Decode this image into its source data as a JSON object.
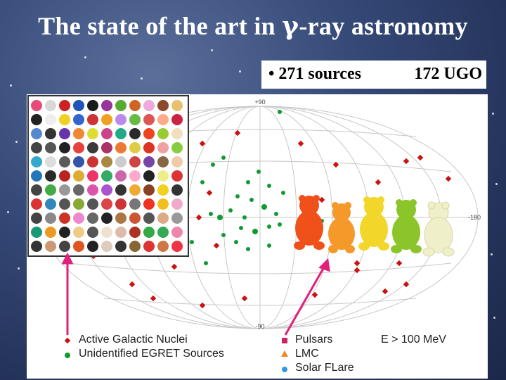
{
  "slide": {
    "title_prefix": "The state of the art in ",
    "title_symbol": "γ",
    "title_suffix": "-ray astronomy",
    "sources_text": "• 271 sources",
    "ugo_text": "172 UGO"
  },
  "map": {
    "lat_top": "+90",
    "lat_bottom": "-90",
    "lon_right": "-180"
  },
  "legend": {
    "agn": "Active Galactic Nuclei",
    "ugo": "Unidentified EGRET Sources",
    "pulsars": "Pulsars",
    "lmc": "LMC",
    "solar": "Solar FLare",
    "energy": "E > 100 MeV"
  },
  "colors": {
    "agn_marker": "#cc1111",
    "ugo_marker": "#119933",
    "pulsar_marker": "#cc2266",
    "lmc_marker": "#ee8822",
    "solar_marker": "#3399dd",
    "arrow": "#e0207a",
    "gummy_bears": [
      "#f0501a",
      "#f59a2a",
      "#f2d62a",
      "#8cc52a",
      "#efefc9"
    ]
  }
}
